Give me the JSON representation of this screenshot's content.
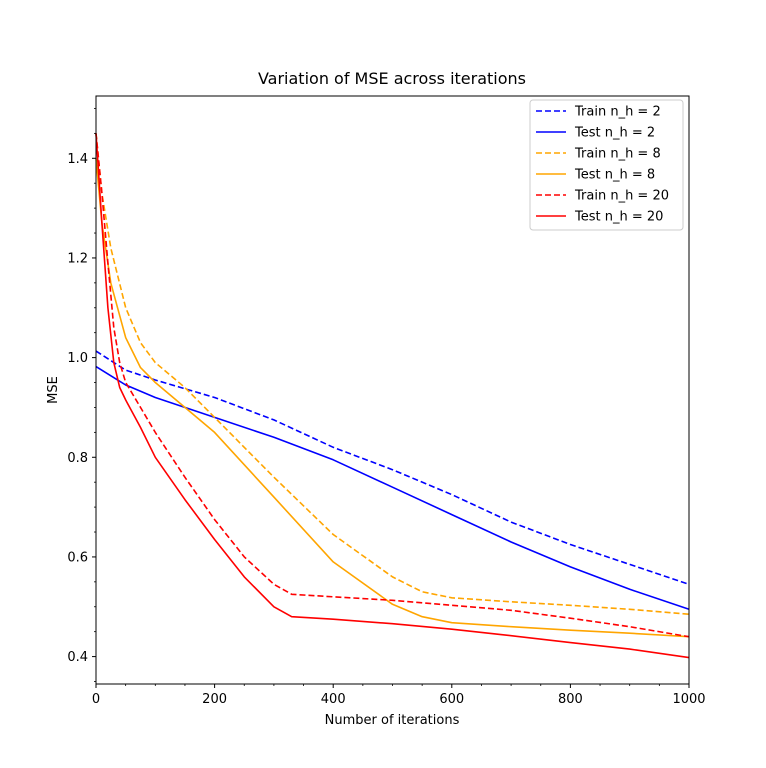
{
  "chart_data": {
    "type": "line",
    "title": "Variation of MSE across iterations",
    "xlabel": "Number of iterations",
    "ylabel": "MSE",
    "xlim": [
      0,
      1000
    ],
    "ylim": [
      0.345,
      1.525
    ],
    "grid": false,
    "legend_position": "top-right",
    "x_ticks": [
      0,
      200,
      400,
      600,
      800,
      1000
    ],
    "x_tick_labels": [
      "0",
      "200",
      "400",
      "600",
      "800",
      "1000"
    ],
    "y_ticks": [
      0.4,
      0.6,
      0.8,
      1.0,
      1.2,
      1.4
    ],
    "y_tick_labels": [
      "0.4",
      "0.6",
      "0.8",
      "1.0",
      "1.2",
      "1.4"
    ],
    "series": [
      {
        "name": "Train n_h = 2",
        "color": "#0000ff",
        "dash": "dashed",
        "x": [
          0,
          50,
          100,
          200,
          300,
          400,
          500,
          600,
          700,
          800,
          900,
          1000
        ],
        "y": [
          1.013,
          0.975,
          0.955,
          0.92,
          0.875,
          0.82,
          0.775,
          0.725,
          0.67,
          0.625,
          0.585,
          0.545
        ]
      },
      {
        "name": "Test n_h = 2",
        "color": "#0000ff",
        "dash": "solid",
        "x": [
          0,
          50,
          100,
          200,
          300,
          400,
          500,
          600,
          700,
          800,
          900,
          1000
        ],
        "y": [
          0.982,
          0.945,
          0.92,
          0.88,
          0.84,
          0.795,
          0.74,
          0.685,
          0.63,
          0.58,
          0.535,
          0.495
        ]
      },
      {
        "name": "Train n_h = 8",
        "color": "#ffa500",
        "dash": "dashed",
        "x": [
          0,
          10,
          25,
          50,
          75,
          100,
          150,
          200,
          300,
          400,
          500,
          550,
          600,
          700,
          800,
          900,
          1000
        ],
        "y": [
          1.45,
          1.33,
          1.22,
          1.1,
          1.03,
          0.99,
          0.94,
          0.88,
          0.76,
          0.645,
          0.56,
          0.53,
          0.518,
          0.51,
          0.503,
          0.495,
          0.485
        ]
      },
      {
        "name": "Test n_h = 8",
        "color": "#ffa500",
        "dash": "solid",
        "x": [
          0,
          10,
          25,
          50,
          75,
          100,
          150,
          200,
          300,
          400,
          500,
          550,
          600,
          700,
          800,
          900,
          1000
        ],
        "y": [
          1.4,
          1.27,
          1.15,
          1.04,
          0.98,
          0.95,
          0.9,
          0.85,
          0.72,
          0.59,
          0.505,
          0.48,
          0.468,
          0.46,
          0.453,
          0.447,
          0.44
        ]
      },
      {
        "name": "Train n_h = 20",
        "color": "#ff0000",
        "dash": "dashed",
        "x": [
          0,
          10,
          20,
          30,
          40,
          50,
          75,
          100,
          150,
          200,
          250,
          300,
          330,
          400,
          500,
          600,
          700,
          800,
          900,
          1000
        ],
        "y": [
          1.45,
          1.33,
          1.19,
          1.06,
          0.99,
          0.95,
          0.9,
          0.85,
          0.76,
          0.675,
          0.6,
          0.545,
          0.525,
          0.52,
          0.513,
          0.503,
          0.493,
          0.477,
          0.46,
          0.44
        ]
      },
      {
        "name": "Test n_h = 20",
        "color": "#ff0000",
        "dash": "solid",
        "x": [
          0,
          10,
          20,
          30,
          40,
          50,
          75,
          100,
          150,
          200,
          250,
          300,
          330,
          400,
          500,
          600,
          700,
          800,
          900,
          1000
        ],
        "y": [
          1.45,
          1.27,
          1.1,
          0.99,
          0.94,
          0.915,
          0.86,
          0.8,
          0.715,
          0.635,
          0.56,
          0.5,
          0.48,
          0.475,
          0.466,
          0.455,
          0.442,
          0.428,
          0.415,
          0.398
        ]
      }
    ]
  }
}
